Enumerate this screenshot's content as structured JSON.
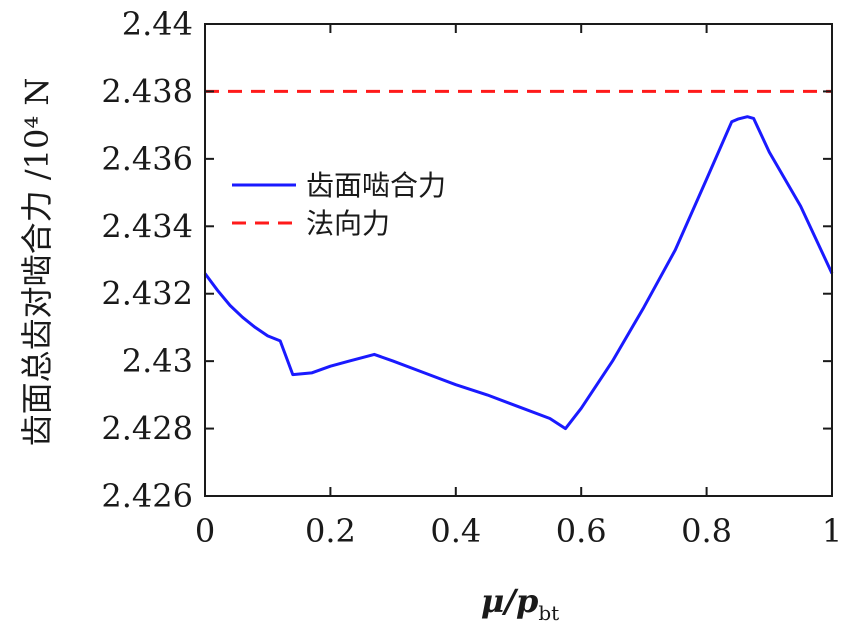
{
  "chart_data": {
    "type": "line",
    "xlabel_main": "μ/p",
    "xlabel_sub": "bt",
    "ylabel": "齿面总齿对啮合力 /10⁴ N",
    "xlim": [
      0,
      1
    ],
    "ylim": [
      2.426,
      2.44
    ],
    "xticks": [
      0,
      0.2,
      0.4,
      0.6,
      0.8,
      1
    ],
    "xtick_labels": [
      "0",
      "0.2",
      "0.4",
      "0.6",
      "0.8",
      "1"
    ],
    "yticks": [
      2.426,
      2.428,
      2.43,
      2.432,
      2.434,
      2.436,
      2.438,
      2.44
    ],
    "ytick_labels": [
      "2.426",
      "2.428",
      "2.43",
      "2.432",
      "2.434",
      "2.436",
      "2.438",
      "2.44"
    ],
    "legend_position": "upper-left",
    "grid": false,
    "series": [
      {
        "name": "齿面啮合力",
        "color": "#1a1aff",
        "style": "solid",
        "x": [
          0,
          0.02,
          0.04,
          0.06,
          0.08,
          0.1,
          0.12,
          0.14,
          0.17,
          0.2,
          0.23,
          0.27,
          0.3,
          0.35,
          0.4,
          0.45,
          0.5,
          0.55,
          0.575,
          0.6,
          0.65,
          0.7,
          0.75,
          0.8,
          0.84,
          0.85,
          0.865,
          0.875,
          0.9,
          0.95,
          1.0
        ],
        "y": [
          2.4326,
          2.4321,
          2.43165,
          2.4313,
          2.431,
          2.43075,
          2.4306,
          2.4296,
          2.42965,
          2.42985,
          2.43,
          2.4302,
          2.43,
          2.42965,
          2.4293,
          2.429,
          2.42865,
          2.4283,
          2.428,
          2.4286,
          2.43,
          2.4316,
          2.4333,
          2.4354,
          2.4371,
          2.43718,
          2.43725,
          2.4372,
          2.4362,
          2.4346,
          2.4326
        ]
      },
      {
        "name": "法向力",
        "color": "#ff1a1a",
        "style": "dashed",
        "x": [
          0,
          1
        ],
        "y": [
          2.438,
          2.438
        ]
      }
    ]
  }
}
